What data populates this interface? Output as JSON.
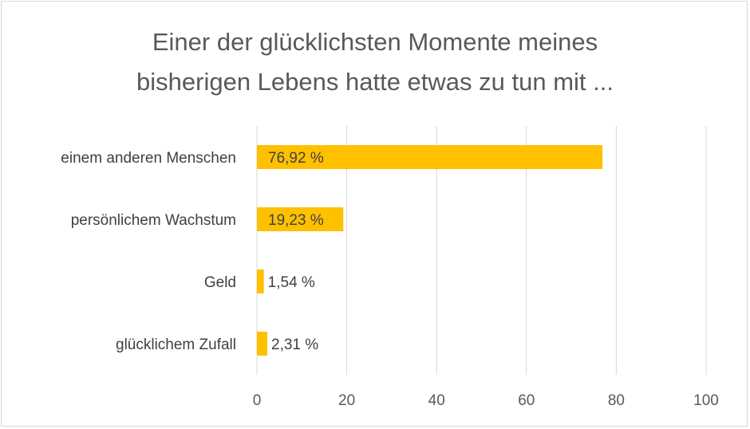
{
  "chart_data": {
    "type": "bar",
    "orientation": "horizontal",
    "title": "Einer der glücklichsten Momente meines bisherigen Lebens hatte etwas zu tun mit ...",
    "title_lines": [
      "Einer der glücklichsten Momente meines",
      "bisherigen Lebens hatte etwas zu tun mit ..."
    ],
    "categories": [
      "einem anderen Menschen",
      "persönlichem Wachstum",
      "Geld",
      "glücklichem Zufall"
    ],
    "values": [
      76.92,
      19.23,
      1.54,
      2.31
    ],
    "data_labels": [
      "76,92 %",
      "19,23 %",
      "1,54 %",
      "2,31 %"
    ],
    "xlim": [
      0,
      100
    ],
    "xticks": [
      0,
      20,
      40,
      60,
      80,
      100
    ],
    "xlabel": "",
    "ylabel": "",
    "grid": true,
    "legend": "none",
    "bar_color": "#FFC000",
    "grid_color": "#D9D9D9"
  }
}
